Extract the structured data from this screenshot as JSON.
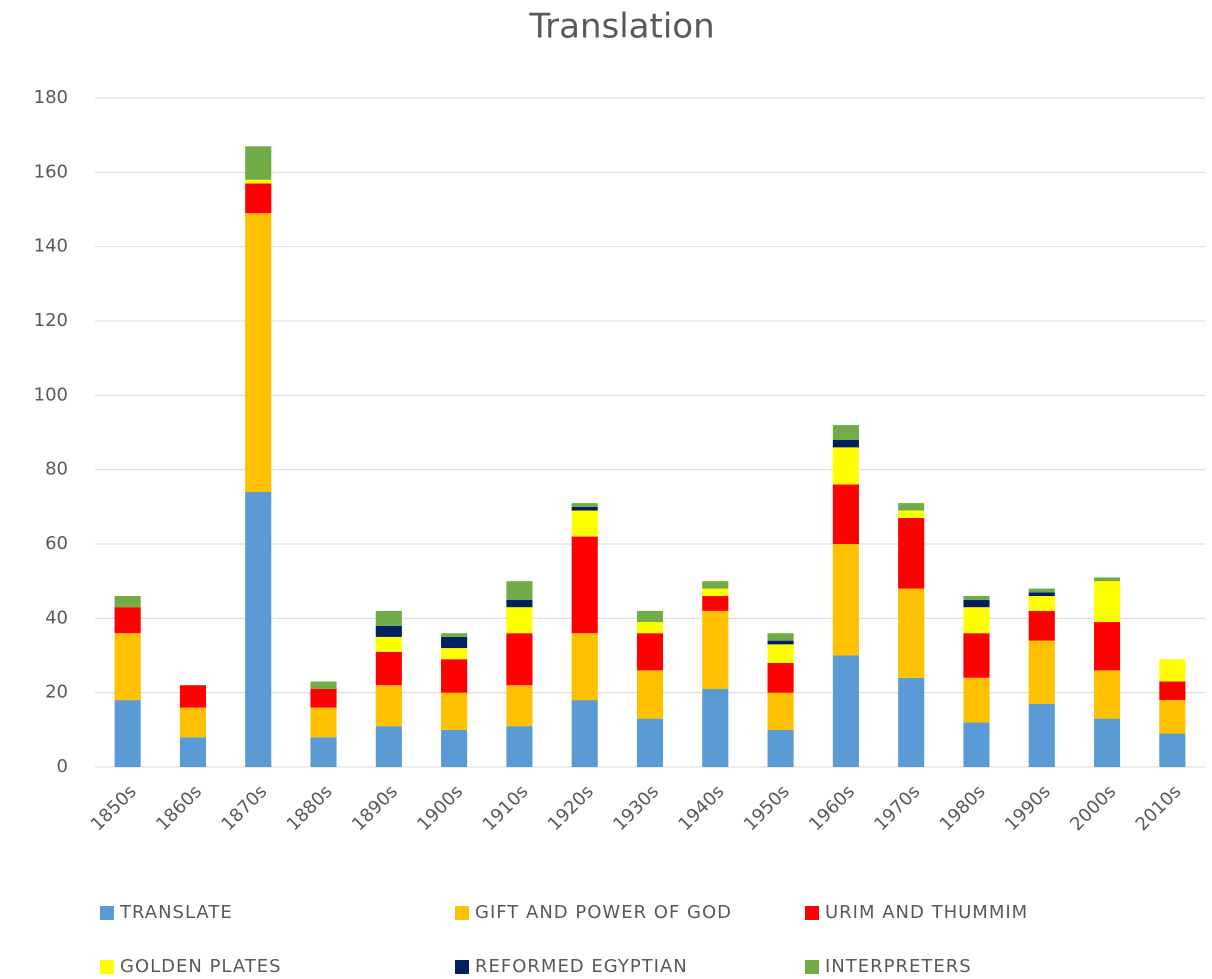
{
  "chart_data": {
    "type": "stacked_bar",
    "title": "Translation",
    "categories": [
      "1850s",
      "1860s",
      "1870s",
      "1880s",
      "1890s",
      "1900s",
      "1910s",
      "1920s",
      "1930s",
      "1940s",
      "1950s",
      "1960s",
      "1970s",
      "1980s",
      "1990s",
      "2000s",
      "2010s"
    ],
    "series": [
      {
        "name": "TRANSLATE",
        "color": "#5b9bd5",
        "values": [
          18,
          8,
          74,
          8,
          11,
          10,
          11,
          18,
          13,
          21,
          10,
          30,
          24,
          12,
          17,
          13,
          9
        ]
      },
      {
        "name": "GIFT AND POWER OF GOD",
        "color": "#ffc000",
        "values": [
          18,
          8,
          75,
          8,
          11,
          10,
          11,
          18,
          13,
          21,
          10,
          30,
          24,
          12,
          17,
          13,
          9
        ]
      },
      {
        "name": "URIM AND THUMMIM",
        "color": "#ff0000",
        "values": [
          7,
          6,
          8,
          5,
          9,
          9,
          14,
          26,
          10,
          4,
          8,
          16,
          19,
          12,
          8,
          13,
          5
        ]
      },
      {
        "name": "GOLDEN PLATES",
        "color": "#ffff00",
        "values": [
          0,
          0,
          1,
          0,
          4,
          3,
          7,
          7,
          3,
          2,
          5,
          10,
          2,
          7,
          4,
          11,
          6
        ]
      },
      {
        "name": "REFORMED EGYPTIAN",
        "color": "#002060",
        "values": [
          0,
          0,
          0,
          0,
          3,
          3,
          2,
          1,
          0,
          0,
          1,
          2,
          0,
          2,
          1,
          0,
          0
        ]
      },
      {
        "name": "INTERPRETERS",
        "color": "#70ad47",
        "values": [
          3,
          0,
          9,
          2,
          4,
          1,
          5,
          1,
          3,
          2,
          2,
          4,
          2,
          1,
          1,
          1,
          0
        ]
      }
    ],
    "ylim": [
      0,
      180
    ],
    "yticks": [
      0,
      20,
      40,
      60,
      80,
      100,
      120,
      140,
      160,
      180
    ],
    "grid": true
  }
}
